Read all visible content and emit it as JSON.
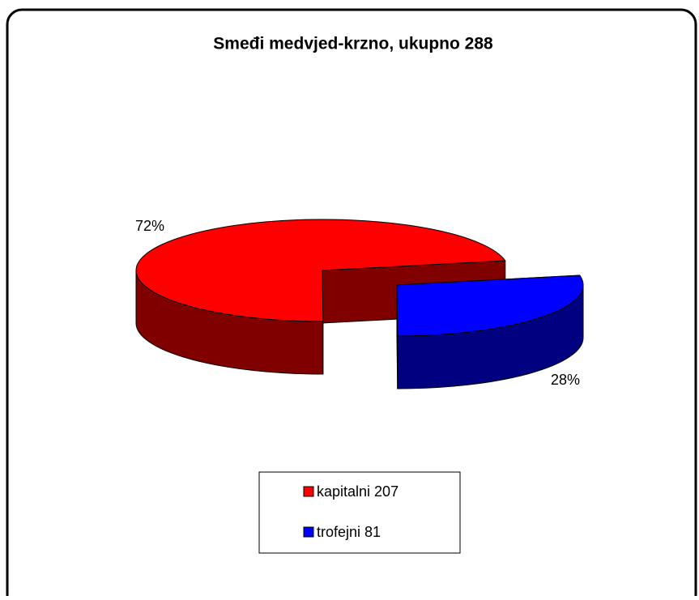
{
  "chart_data": {
    "type": "pie3d",
    "title": "Smeđi medvjed-krzno, ukupno 288",
    "categories": [
      "kapitalni 207",
      "trofejni 81"
    ],
    "values": [
      72,
      28
    ],
    "value_labels": [
      "72%",
      "28%"
    ],
    "colors": [
      "#ff0000",
      "#0000ff"
    ],
    "side_colors": [
      "#800000",
      "#000080"
    ],
    "legend": "bottom"
  }
}
